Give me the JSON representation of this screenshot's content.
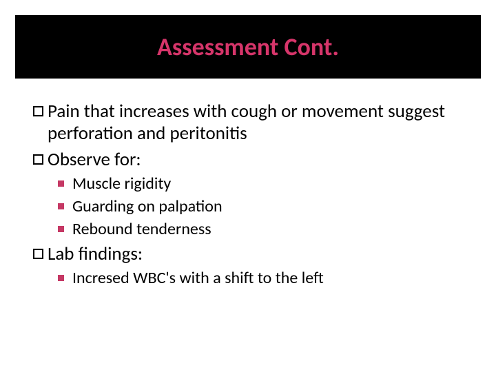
{
  "colors": {
    "title_band_bg": "#000000",
    "title_text": "#d6356a",
    "body_text": "#000000",
    "lvl1_bullet_border": "#000000",
    "lvl2_bullet_fill": "#c53864",
    "slide_bg": "#ffffff"
  },
  "typography": {
    "title_fontsize": 36,
    "title_weight": 700,
    "lvl1_fontsize": 27,
    "lvl2_fontsize": 24,
    "font_family": "Calibri"
  },
  "title": "Assessment Cont.",
  "body": {
    "items": [
      {
        "level": 1,
        "text": "Pain that increases with cough or movement suggest perforation and peritonitis"
      },
      {
        "level": 1,
        "text": "Observe for:"
      },
      {
        "level": 2,
        "text": "Muscle rigidity"
      },
      {
        "level": 2,
        "text": "Guarding on palpation"
      },
      {
        "level": 2,
        "text": "Rebound tenderness"
      },
      {
        "level": 1,
        "text": "Lab findings:"
      },
      {
        "level": 2,
        "text": "Incresed WBC's with a shift to the left"
      }
    ]
  }
}
